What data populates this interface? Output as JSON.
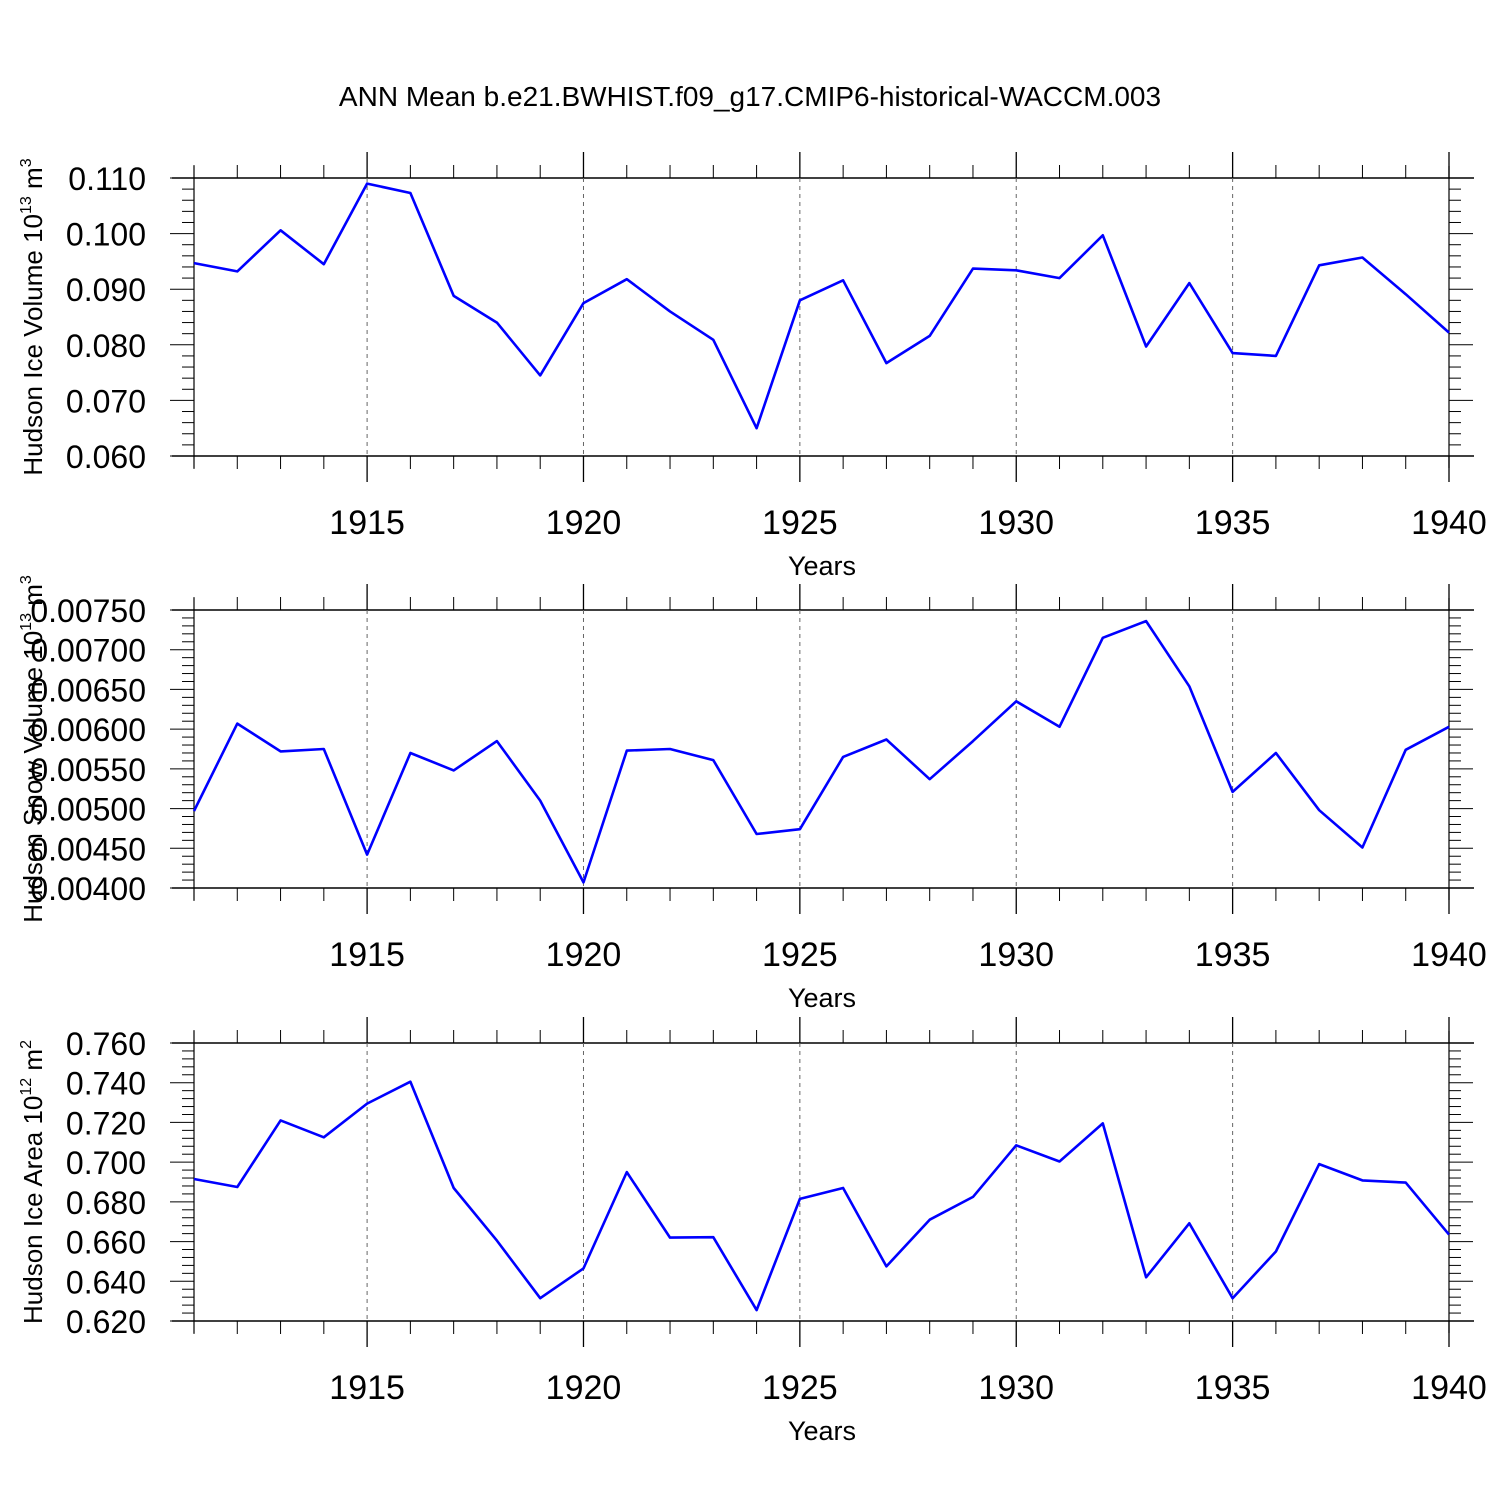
{
  "title": "ANN Mean b.e21.BWHIST.f09_g17.CMIP6-historical-WACCM.003",
  "chart_data": [
    {
      "type": "line",
      "xlabel": "Years",
      "ylabel": {
        "main": "Hudson Ice Volume 10",
        "exp": "13",
        "unit": " m",
        "unit_exp": "3"
      },
      "xlim": [
        1911,
        1940
      ],
      "ylim": [
        0.06,
        0.11
      ],
      "x_ticks": [
        1915,
        1920,
        1925,
        1930,
        1935,
        1940
      ],
      "y_ticks": [
        "0.060",
        "0.070",
        "0.080",
        "0.090",
        "0.100",
        "0.110"
      ],
      "grid": "vertical dashed at x ticks",
      "color": "#0000ff",
      "x": [
        1911,
        1912,
        1913,
        1914,
        1915,
        1916,
        1917,
        1918,
        1919,
        1920,
        1921,
        1922,
        1923,
        1924,
        1925,
        1926,
        1927,
        1928,
        1929,
        1930,
        1931,
        1932,
        1933,
        1934,
        1935,
        1936,
        1937,
        1938,
        1939,
        1940
      ],
      "values": [
        0.0947,
        0.0932,
        0.1006,
        0.0945,
        0.109,
        0.1073,
        0.0888,
        0.084,
        0.0745,
        0.0875,
        0.0918,
        0.086,
        0.0809,
        0.065,
        0.088,
        0.0916,
        0.0767,
        0.0816,
        0.0937,
        0.0934,
        0.092,
        0.0997,
        0.0797,
        0.0911,
        0.0785,
        0.078,
        0.0943,
        0.0957,
        0.0891,
        0.0822
      ]
    },
    {
      "type": "line",
      "xlabel": "Years",
      "ylabel": {
        "main": "Hudson Snow Volume 10",
        "exp": "13",
        "unit": " m",
        "unit_exp": "3"
      },
      "xlim": [
        1911,
        1940
      ],
      "ylim": [
        0.004,
        0.0075
      ],
      "x_ticks": [
        1915,
        1920,
        1925,
        1930,
        1935,
        1940
      ],
      "y_ticks": [
        "0.00400",
        "0.00450",
        "0.00500",
        "0.00550",
        "0.00600",
        "0.00650",
        "0.00700",
        "0.00750"
      ],
      "grid": "vertical dashed at x ticks",
      "color": "#0000ff",
      "x": [
        1911,
        1912,
        1913,
        1914,
        1915,
        1916,
        1917,
        1918,
        1919,
        1920,
        1921,
        1922,
        1923,
        1924,
        1925,
        1926,
        1927,
        1928,
        1929,
        1930,
        1931,
        1932,
        1933,
        1934,
        1935,
        1936,
        1937,
        1938,
        1939,
        1940
      ],
      "values": [
        0.00497,
        0.00607,
        0.00572,
        0.00575,
        0.00442,
        0.0057,
        0.00548,
        0.00585,
        0.0051,
        0.00407,
        0.00573,
        0.00575,
        0.00561,
        0.00468,
        0.00474,
        0.00565,
        0.00587,
        0.00537,
        0.00585,
        0.00635,
        0.00603,
        0.00715,
        0.00736,
        0.00654,
        0.00521,
        0.0057,
        0.00498,
        0.00451,
        0.00574,
        0.00603
      ]
    },
    {
      "type": "line",
      "xlabel": "Years",
      "ylabel": {
        "main": "Hudson Ice Area 10",
        "exp": "12",
        "unit": " m",
        "unit_exp": "2"
      },
      "xlim": [
        1911,
        1940
      ],
      "ylim": [
        0.62,
        0.76
      ],
      "x_ticks": [
        1915,
        1920,
        1925,
        1930,
        1935,
        1940
      ],
      "y_ticks": [
        "0.620",
        "0.640",
        "0.660",
        "0.680",
        "0.700",
        "0.720",
        "0.740",
        "0.760"
      ],
      "grid": "vertical dashed at x ticks",
      "color": "#0000ff",
      "x": [
        1911,
        1912,
        1913,
        1914,
        1915,
        1916,
        1917,
        1918,
        1919,
        1920,
        1921,
        1922,
        1923,
        1924,
        1925,
        1926,
        1927,
        1928,
        1929,
        1930,
        1931,
        1932,
        1933,
        1934,
        1935,
        1936,
        1937,
        1938,
        1939,
        1940
      ],
      "values": [
        0.6915,
        0.6875,
        0.721,
        0.7125,
        0.7295,
        0.7405,
        0.687,
        0.6605,
        0.6315,
        0.6465,
        0.695,
        0.662,
        0.6622,
        0.6255,
        0.6815,
        0.687,
        0.6475,
        0.671,
        0.6825,
        0.7085,
        0.7003,
        0.7195,
        0.642,
        0.6692,
        0.6315,
        0.655,
        0.699,
        0.6908,
        0.6897,
        0.6635
      ]
    }
  ]
}
